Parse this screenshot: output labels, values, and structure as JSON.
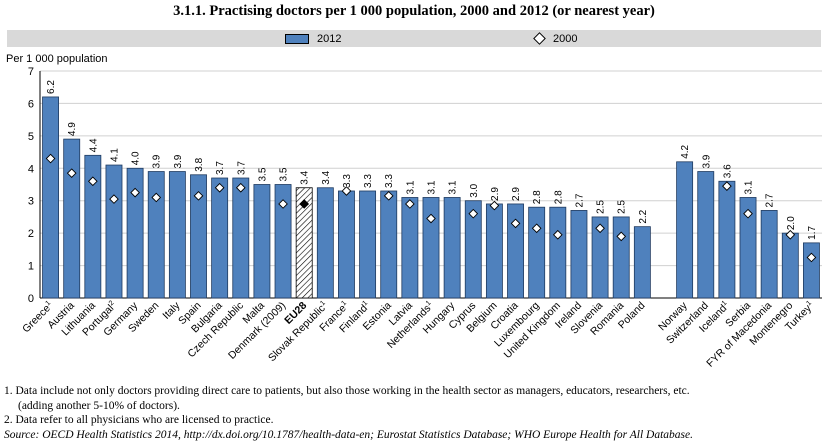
{
  "title": "3.1.1. Practising doctors per 1 000 population, 2000 and 2012 (or nearest year)",
  "legend": {
    "series_2012": "2012",
    "series_2000": "2000"
  },
  "notes": {
    "n1_line1": "1. Data include not only doctors providing direct care to patients, but also those working in the health sector as managers, educators, researchers, etc.",
    "n1_line2": "(adding another 5-10% of doctors).",
    "n2": "2. Data refer to all physicians who are licensed to practice.",
    "source_label": "Source:",
    "source_text": "OECD Health Statistics 2014, http://dx.doi.org/10.1787/health-data-en; Eurostat Statistics Database; WHO Europe Health for All Database."
  },
  "colors": {
    "bar": "#4f81bd",
    "bar_stroke": "#1f3a5f",
    "axis": "#000000",
    "grid": "#d0d0d0",
    "legend_bg": "#d9d9d9"
  },
  "chart_data": {
    "type": "bar",
    "ylabel": "Per 1 000 population",
    "ylim": [
      0,
      7
    ],
    "yticks": [
      0,
      1,
      2,
      3,
      4,
      5,
      6,
      7
    ],
    "grid": true,
    "categories": [
      {
        "label": "Greece",
        "sup": "1",
        "v2012": 6.2,
        "v2000": 4.3
      },
      {
        "label": "Austria",
        "sup": "",
        "v2012": 4.9,
        "v2000": 3.85
      },
      {
        "label": "Lithuania",
        "sup": "",
        "v2012": 4.4,
        "v2000": 3.6
      },
      {
        "label": "Portugal",
        "sup": "2",
        "v2012": 4.1,
        "v2000": 3.05
      },
      {
        "label": "Germany",
        "sup": "",
        "v2012": 4.0,
        "v2000": 3.25
      },
      {
        "label": "Sweden",
        "sup": "",
        "v2012": 3.9,
        "v2000": 3.1
      },
      {
        "label": "Italy",
        "sup": "",
        "v2012": 3.9,
        "v2000": null
      },
      {
        "label": "Spain",
        "sup": "",
        "v2012": 3.8,
        "v2000": 3.15
      },
      {
        "label": "Bulgaria",
        "sup": "",
        "v2012": 3.7,
        "v2000": 3.4
      },
      {
        "label": "Czech Republic",
        "sup": "",
        "v2012": 3.7,
        "v2000": 3.4
      },
      {
        "label": "Malta",
        "sup": "",
        "v2012": 3.5,
        "v2000": null
      },
      {
        "label": "Denmark (2009)",
        "sup": "",
        "v2012": 3.5,
        "v2000": 2.9
      },
      {
        "label": "EU28",
        "sup": "",
        "v2012": 3.4,
        "v2000": 2.9,
        "highlight": true
      },
      {
        "label": "Slovak Republic",
        "sup": "1",
        "v2012": 3.4,
        "v2000": null
      },
      {
        "label": "France",
        "sup": "1",
        "v2012": 3.3,
        "v2000": 3.3
      },
      {
        "label": "Finland",
        "sup": "1",
        "v2012": 3.3,
        "v2000": null
      },
      {
        "label": "Estonia",
        "sup": "",
        "v2012": 3.3,
        "v2000": 3.15
      },
      {
        "label": "Latvia",
        "sup": "",
        "v2012": 3.1,
        "v2000": 2.9
      },
      {
        "label": "Netherlands",
        "sup": "1",
        "v2012": 3.1,
        "v2000": 2.45
      },
      {
        "label": "Hungary",
        "sup": "",
        "v2012": 3.1,
        "v2000": null
      },
      {
        "label": "Cyprus",
        "sup": "",
        "v2012": 3.0,
        "v2000": 2.6
      },
      {
        "label": "Belgium",
        "sup": "",
        "v2012": 2.9,
        "v2000": 2.85
      },
      {
        "label": "Croatia",
        "sup": "",
        "v2012": 2.9,
        "v2000": 2.3
      },
      {
        "label": "Luxembourg",
        "sup": "",
        "v2012": 2.8,
        "v2000": 2.15
      },
      {
        "label": "United Kingdom",
        "sup": "",
        "v2012": 2.8,
        "v2000": 1.95
      },
      {
        "label": "Ireland",
        "sup": "",
        "v2012": 2.7,
        "v2000": null
      },
      {
        "label": "Slovenia",
        "sup": "",
        "v2012": 2.5,
        "v2000": 2.15
      },
      {
        "label": "Romania",
        "sup": "",
        "v2012": 2.5,
        "v2000": 1.9
      },
      {
        "label": "Poland",
        "sup": "",
        "v2012": 2.2,
        "v2000": null
      },
      {
        "label": "",
        "sup": "",
        "v2012": null,
        "v2000": null,
        "gap": true
      },
      {
        "label": "Norway",
        "sup": "",
        "v2012": 4.2,
        "v2000": null
      },
      {
        "label": "Switzerland",
        "sup": "",
        "v2012": 3.9,
        "v2000": null
      },
      {
        "label": "Iceland",
        "sup": "1",
        "v2012": 3.6,
        "v2000": 3.45
      },
      {
        "label": "Serbia",
        "sup": "",
        "v2012": 3.1,
        "v2000": 2.6
      },
      {
        "label": "FYR of Macedonia",
        "sup": "",
        "v2012": 2.7,
        "v2000": null
      },
      {
        "label": "Montenegro",
        "sup": "",
        "v2012": 2.0,
        "v2000": 1.95
      },
      {
        "label": "Turkey",
        "sup": "1",
        "v2012": 1.7,
        "v2000": 1.25
      }
    ]
  }
}
